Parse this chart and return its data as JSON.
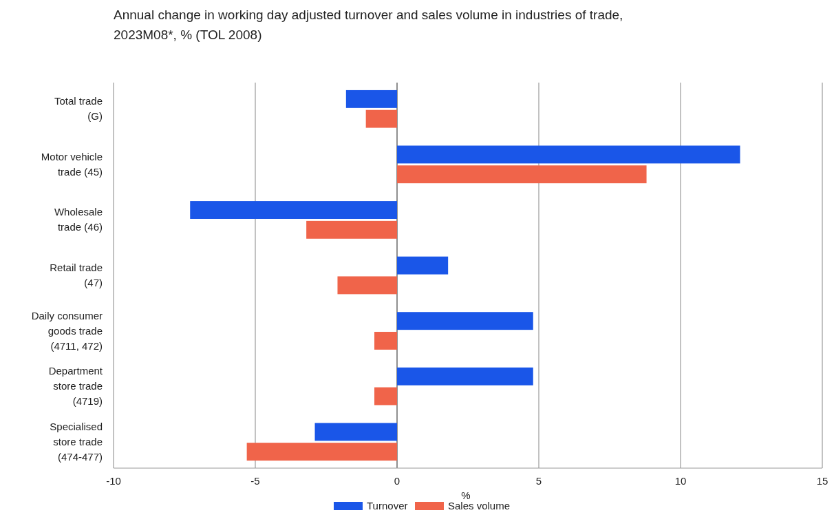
{
  "chart_data": {
    "type": "bar",
    "orientation": "horizontal",
    "title": "Annual change in working day adjusted turnover and sales volume in industries of trade, 2023M08*, % (TOL 2008)",
    "xlabel": "%",
    "categories": [
      "Total trade (G)",
      "Motor vehicle trade (45)",
      "Wholesale trade (46)",
      "Retail trade (47)",
      "Daily consumer goods trade (4711, 472)",
      "Department store trade (4719)",
      "Specialised store trade (474-477)"
    ],
    "series": [
      {
        "name": "Turnover",
        "color": "#1a56e8",
        "values": [
          -1.8,
          12.1,
          -7.3,
          1.8,
          4.8,
          4.8,
          -2.9
        ]
      },
      {
        "name": "Sales volume",
        "color": "#f0644a",
        "values": [
          -1.1,
          8.8,
          -3.2,
          -2.1,
          -0.8,
          -0.8,
          -5.3
        ]
      }
    ],
    "xlim": [
      -10,
      15
    ],
    "xticks": [
      -10,
      -5,
      0,
      5,
      10,
      15
    ],
    "grid": "x",
    "legend": "bottom"
  }
}
